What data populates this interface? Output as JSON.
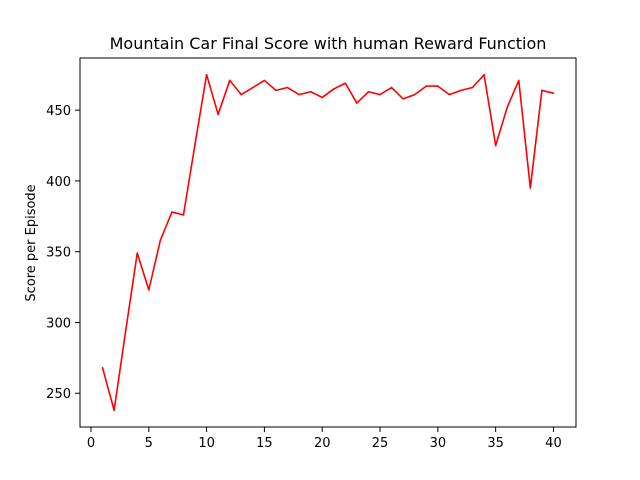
{
  "chart_data": {
    "type": "line",
    "title": "Mountain Car Final Score with human Reward Function",
    "xlabel": "",
    "ylabel": "Score per Episode",
    "xlim": [
      -0.95,
      41.95
    ],
    "ylim": [
      226.15,
      486.85
    ],
    "x_ticks": [
      0,
      5,
      10,
      15,
      20,
      25,
      30,
      35,
      40
    ],
    "y_ticks": [
      250,
      300,
      350,
      400,
      450
    ],
    "grid": false,
    "legend": "none",
    "series": [
      {
        "color": "#ff0000",
        "x": [
          1,
          2,
          3,
          4,
          5,
          6,
          7,
          8,
          9,
          10,
          11,
          12,
          13,
          14,
          15,
          16,
          17,
          18,
          19,
          20,
          21,
          22,
          23,
          24,
          25,
          26,
          27,
          28,
          29,
          30,
          31,
          32,
          33,
          34,
          35,
          36,
          37,
          38,
          39,
          40
        ],
        "values": [
          268,
          238,
          294,
          349,
          323,
          358,
          378,
          376,
          426,
          475,
          447,
          471,
          461,
          466,
          471,
          464,
          466,
          461,
          463,
          459,
          465,
          469,
          455,
          463,
          461,
          466,
          458,
          461,
          467,
          467,
          461,
          464,
          466,
          475,
          425,
          452,
          471,
          395,
          464,
          462
        ]
      }
    ]
  }
}
